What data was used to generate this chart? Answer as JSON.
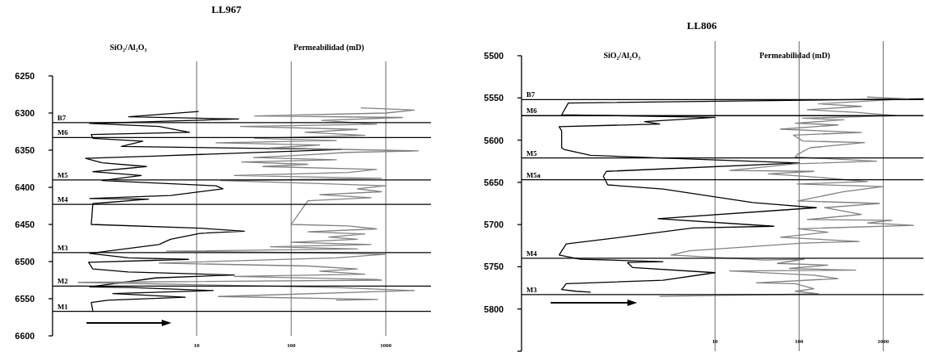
{
  "chart_data": [
    {
      "type": "line",
      "title": "LL967",
      "annotations": [
        "SiO₂/Al₂O₃",
        "Permeabilidad (mD)"
      ],
      "log": "x",
      "grid": "x",
      "xlim": [
        0.3,
        3000
      ],
      "xticks": [
        10,
        100,
        1000
      ],
      "ylim": [
        6600,
        6250
      ],
      "yticks": [
        6250,
        6300,
        6350,
        6400,
        6450,
        6500,
        6550,
        6600
      ],
      "series": [
        {
          "color": "#000000",
          "x": [
            10.4,
            1.91,
            27.8,
            0.74,
            4.0,
            8.4,
            0.77,
            0.8,
            2.7,
            1.6,
            340,
            3.5,
            0.67,
            1.0,
            2.95,
            0.8,
            2.6,
            1.0,
            16,
            19,
            5.3,
            0.74,
            3.1,
            0.8,
            0.77,
            10.8,
            32,
            10.8,
            5.3,
            4.0,
            0.74,
            1.9,
            8.2,
            0.72,
            0.8,
            1.9,
            25,
            3.7,
            0.74,
            2.0,
            15,
            1.3,
            7.6,
            1.15,
            0.77,
            0.8
          ],
          "values": [
            6298,
            6305,
            6308,
            6314,
            6318,
            6326,
            6329,
            6334,
            6338,
            6345,
            6349,
            6358,
            6361,
            6367,
            6372,
            6379,
            6384,
            6391,
            6398,
            6402,
            6411,
            6415,
            6416,
            6422,
            6450,
            6455,
            6459,
            6462,
            6470,
            6477,
            6489,
            6495,
            6497,
            6501,
            6510,
            6514,
            6518,
            6522,
            6534,
            6535,
            6539,
            6543,
            6548,
            6552,
            6555,
            6567
          ]
        },
        {
          "color": "#808080",
          "x": [
            550,
            2000,
            1000,
            41,
            1500,
            210,
            800,
            29,
            500,
            140,
            600,
            41,
            300,
            16,
            200,
            60,
            2200,
            400,
            120,
            40,
            300,
            30,
            150,
            50,
            800,
            400,
            25,
            900,
            18,
            200,
            1000,
            500,
            900,
            200,
            700,
            150,
            100,
            400,
            800,
            150,
            600,
            250,
            500,
            100,
            700,
            60,
            500,
            4.8,
            120,
            1000,
            300,
            4,
            150,
            500,
            200,
            600,
            25,
            800,
            900,
            0.56,
            300,
            2000,
            17,
            820,
            300
          ],
          "values": [
            6293,
            6296,
            6300,
            6304,
            6306,
            6310,
            6315,
            6318,
            6322,
            6326,
            6330,
            6334,
            6337,
            6340,
            6343,
            6347,
            6351,
            6353,
            6357,
            6360,
            6363,
            6366,
            6369,
            6372,
            6376,
            6380,
            6384,
            6388,
            6391,
            6395,
            6398,
            6402,
            6406,
            6410,
            6414,
            6418,
            6450,
            6452,
            6456,
            6460,
            6463,
            6467,
            6470,
            6474,
            6477,
            6480,
            6483,
            6486,
            6488,
            6490,
            6495,
            6502,
            6506,
            6510,
            6513,
            6517,
            6520,
            6524,
            6525,
            6528,
            6535,
            6539,
            6547,
            6551,
            6552
          ]
        }
      ],
      "ref_lines": [
        {
          "axis": "y",
          "value": 6313,
          "label": "B7",
          "color": "#000000"
        },
        {
          "axis": "y",
          "value": 6333,
          "label": "M6",
          "color": "#000000"
        },
        {
          "axis": "y",
          "value": 6390,
          "label": "M5",
          "color": "#000000"
        },
        {
          "axis": "y",
          "value": 6423,
          "label": "M4",
          "color": "#000000"
        },
        {
          "axis": "y",
          "value": 6488,
          "label": "M3",
          "color": "#000000"
        },
        {
          "axis": "y",
          "value": 6533,
          "label": "M2",
          "color": "#000000"
        },
        {
          "axis": "y",
          "value": 6567,
          "label": "M1",
          "color": "#000000"
        }
      ]
    },
    {
      "type": "line",
      "title": "LL806",
      "annotations": [
        "SiO₂/Al₂O₃",
        "Permeabilidad (mD)"
      ],
      "log": "x",
      "grid": "x",
      "xlim": [
        0.05,
        3000
      ],
      "xticks": [
        10,
        100,
        1000
      ],
      "ylim": [
        5850,
        5500
      ],
      "yticks": [
        5500,
        5550,
        5600,
        5650,
        5700,
        5750,
        5800,
        {
          "value": 5850,
          "label": null
        }
      ],
      "series": [
        {
          "color": "#000000",
          "x": [
            3000,
            0.18,
            0.15,
            10,
            1.45,
            2.2,
            0.14,
            0.15,
            0.15,
            0.16,
            0.33,
            100,
            0.51,
            0.47,
            0.53,
            2.4,
            28,
            160,
            2.1,
            50,
            5.4,
            0.53,
            0.17,
            0.14,
            0.25,
            2.4,
            0.91,
            1.05,
            10,
            2.4,
            0.17,
            0.15,
            0.22,
            0.33
          ],
          "values": [
            5551,
            5556,
            5570,
            5573,
            5578,
            5581,
            5584,
            5589,
            5609,
            5611,
            5618,
            5627,
            5637,
            5643,
            5653,
            5658,
            5674,
            5680,
            5693,
            5702,
            5704,
            5717,
            5723,
            5736,
            5741,
            5744,
            5745,
            5751,
            5757,
            5766,
            5770,
            5777,
            5779,
            5780
          ]
        },
        {
          "color": "#808080",
          "x": [
            650,
            2000,
            170,
            550,
            125,
            470,
            1400,
            110,
            340,
            90,
            290,
            60,
            550,
            85,
            110,
            600,
            135,
            95,
            90,
            830,
            90,
            15,
            150,
            43,
            125,
            650,
            95,
            1000,
            340,
            97,
            900,
            200,
            550,
            125,
            1270,
            650,
            2300,
            97,
            220,
            60,
            520,
            110,
            5.0,
            3.0,
            39,
            115,
            55,
            220,
            77,
            470,
            15,
            150,
            290,
            31,
            90,
            150,
            90,
            170,
            2.2
          ],
          "values": [
            5549,
            5551,
            5557,
            5560,
            5564,
            5567,
            5571,
            5574,
            5576,
            5580,
            5582,
            5587,
            5591,
            5594,
            5601,
            5603,
            5609,
            5617,
            5620,
            5625,
            5628,
            5636,
            5637,
            5640,
            5643,
            5649,
            5652,
            5655,
            5661,
            5672,
            5675,
            5680,
            5688,
            5694,
            5695,
            5698,
            5701,
            5705,
            5709,
            5715,
            5720,
            5722,
            5731,
            5736,
            5742,
            5741,
            5746,
            5748,
            5752,
            5754,
            5755,
            5760,
            5764,
            5769,
            5770,
            5776,
            5779,
            5782,
            5785
          ]
        }
      ],
      "ref_lines": [
        {
          "axis": "y",
          "value": 5552,
          "label": "B7",
          "color": "#000000"
        },
        {
          "axis": "y",
          "value": 5571,
          "label": "M6",
          "color": "#000000"
        },
        {
          "axis": "y",
          "value": 5621,
          "label": "M5",
          "color": "#000000"
        },
        {
          "axis": "y",
          "value": 5647,
          "label": "M5a",
          "color": "#000000"
        },
        {
          "axis": "y",
          "value": 5740,
          "label": "M4",
          "color": "#000000"
        },
        {
          "axis": "y",
          "value": 5783,
          "label": "M3",
          "color": "#000000"
        }
      ]
    }
  ]
}
